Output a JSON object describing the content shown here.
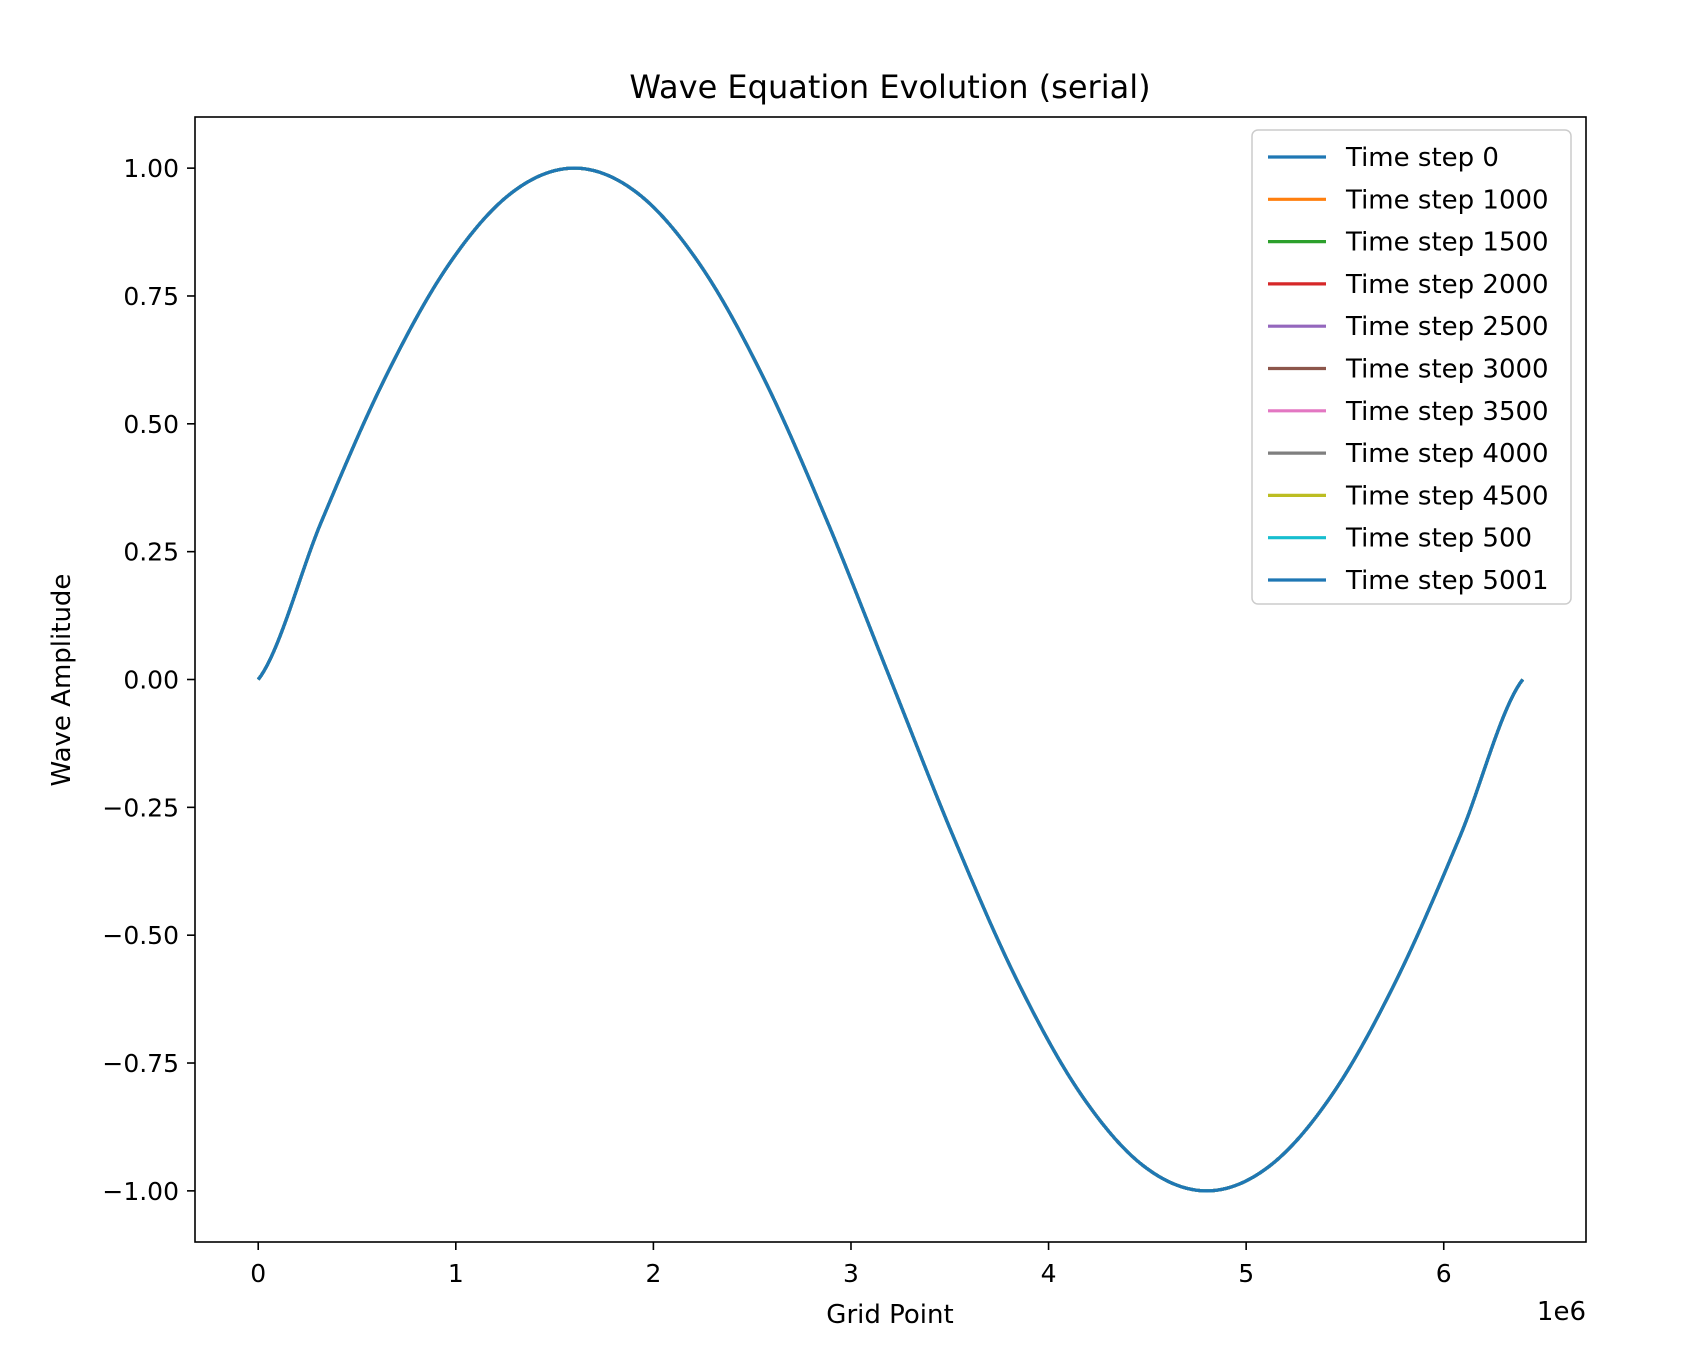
{
  "chart_data": {
    "type": "line",
    "title": "Wave Equation Evolution (serial)",
    "xlabel": "Grid Point",
    "ylabel": "Wave Amplitude",
    "x_offset_label": "1e6",
    "xlim": [
      -320000,
      6720000
    ],
    "ylim": [
      -1.1,
      1.1
    ],
    "x_ticks": [
      0,
      1,
      2,
      3,
      4,
      5,
      6
    ],
    "x_tick_labels": [
      "0",
      "1",
      "2",
      "3",
      "4",
      "5",
      "6"
    ],
    "y_ticks": [
      1.0,
      0.75,
      0.5,
      0.25,
      0.0,
      -0.25,
      -0.5,
      -0.75,
      -1.0
    ],
    "y_tick_labels": [
      "1.00",
      "0.75",
      "0.50",
      "0.25",
      "0.00",
      "−0.25",
      "−0.50",
      "−0.75",
      "−1.00"
    ],
    "grid": false,
    "legend_position": "top-right",
    "x": [
      0,
      320000,
      640000,
      960000,
      1280000,
      1600000,
      1920000,
      2240000,
      2560000,
      2880000,
      3200000,
      3520000,
      3840000,
      4160000,
      4480000,
      4800000,
      5120000,
      5440000,
      5760000,
      6080000,
      6400000
    ],
    "series": [
      {
        "name": "Time step 0",
        "color": "#1f77b4",
        "values": [
          0,
          0.309,
          0.588,
          0.809,
          0.951,
          1.0,
          0.951,
          0.809,
          0.588,
          0.309,
          0,
          -0.309,
          -0.588,
          -0.809,
          -0.951,
          -1.0,
          -0.951,
          -0.809,
          -0.588,
          -0.309,
          0
        ]
      },
      {
        "name": "Time step 1000",
        "color": "#ff7f0e",
        "values": [
          0,
          0.309,
          0.588,
          0.809,
          0.951,
          1.0,
          0.951,
          0.809,
          0.588,
          0.309,
          0,
          -0.309,
          -0.588,
          -0.809,
          -0.951,
          -1.0,
          -0.951,
          -0.809,
          -0.588,
          -0.309,
          0
        ]
      },
      {
        "name": "Time step 1500",
        "color": "#2ca02c",
        "values": [
          0,
          0.309,
          0.588,
          0.809,
          0.951,
          1.0,
          0.951,
          0.809,
          0.588,
          0.309,
          0,
          -0.309,
          -0.588,
          -0.809,
          -0.951,
          -1.0,
          -0.951,
          -0.809,
          -0.588,
          -0.309,
          0
        ]
      },
      {
        "name": "Time step 2000",
        "color": "#d62728",
        "values": [
          0,
          0.309,
          0.588,
          0.809,
          0.951,
          1.0,
          0.951,
          0.809,
          0.588,
          0.309,
          0,
          -0.309,
          -0.588,
          -0.809,
          -0.951,
          -1.0,
          -0.951,
          -0.809,
          -0.588,
          -0.309,
          0
        ]
      },
      {
        "name": "Time step 2500",
        "color": "#9467bd",
        "values": [
          0,
          0.309,
          0.588,
          0.809,
          0.951,
          1.0,
          0.951,
          0.809,
          0.588,
          0.309,
          0,
          -0.309,
          -0.588,
          -0.809,
          -0.951,
          -1.0,
          -0.951,
          -0.809,
          -0.588,
          -0.309,
          0
        ]
      },
      {
        "name": "Time step 3000",
        "color": "#8c564b",
        "values": [
          0,
          0.309,
          0.588,
          0.809,
          0.951,
          1.0,
          0.951,
          0.809,
          0.588,
          0.309,
          0,
          -0.309,
          -0.588,
          -0.809,
          -0.951,
          -1.0,
          -0.951,
          -0.809,
          -0.588,
          -0.309,
          0
        ]
      },
      {
        "name": "Time step 3500",
        "color": "#e377c2",
        "values": [
          0,
          0.309,
          0.588,
          0.809,
          0.951,
          1.0,
          0.951,
          0.809,
          0.588,
          0.309,
          0,
          -0.309,
          -0.588,
          -0.809,
          -0.951,
          -1.0,
          -0.951,
          -0.809,
          -0.588,
          -0.309,
          0
        ]
      },
      {
        "name": "Time step 4000",
        "color": "#7f7f7f",
        "values": [
          0,
          0.309,
          0.588,
          0.809,
          0.951,
          1.0,
          0.951,
          0.809,
          0.588,
          0.309,
          0,
          -0.309,
          -0.588,
          -0.809,
          -0.951,
          -1.0,
          -0.951,
          -0.809,
          -0.588,
          -0.309,
          0
        ]
      },
      {
        "name": "Time step 4500",
        "color": "#bcbd22",
        "values": [
          0,
          0.309,
          0.588,
          0.809,
          0.951,
          1.0,
          0.951,
          0.809,
          0.588,
          0.309,
          0,
          -0.309,
          -0.588,
          -0.809,
          -0.951,
          -1.0,
          -0.951,
          -0.809,
          -0.588,
          -0.309,
          0
        ]
      },
      {
        "name": "Time step 500",
        "color": "#17becf",
        "values": [
          0,
          0.309,
          0.588,
          0.809,
          0.951,
          1.0,
          0.951,
          0.809,
          0.588,
          0.309,
          0,
          -0.309,
          -0.588,
          -0.809,
          -0.951,
          -1.0,
          -0.951,
          -0.809,
          -0.588,
          -0.309,
          0
        ]
      },
      {
        "name": "Time step 5001",
        "color": "#1f77b4",
        "values": [
          0,
          0.309,
          0.588,
          0.809,
          0.951,
          1.0,
          0.951,
          0.809,
          0.588,
          0.309,
          0,
          -0.309,
          -0.588,
          -0.809,
          -0.951,
          -1.0,
          -0.951,
          -0.809,
          -0.588,
          -0.309,
          0
        ]
      }
    ]
  }
}
